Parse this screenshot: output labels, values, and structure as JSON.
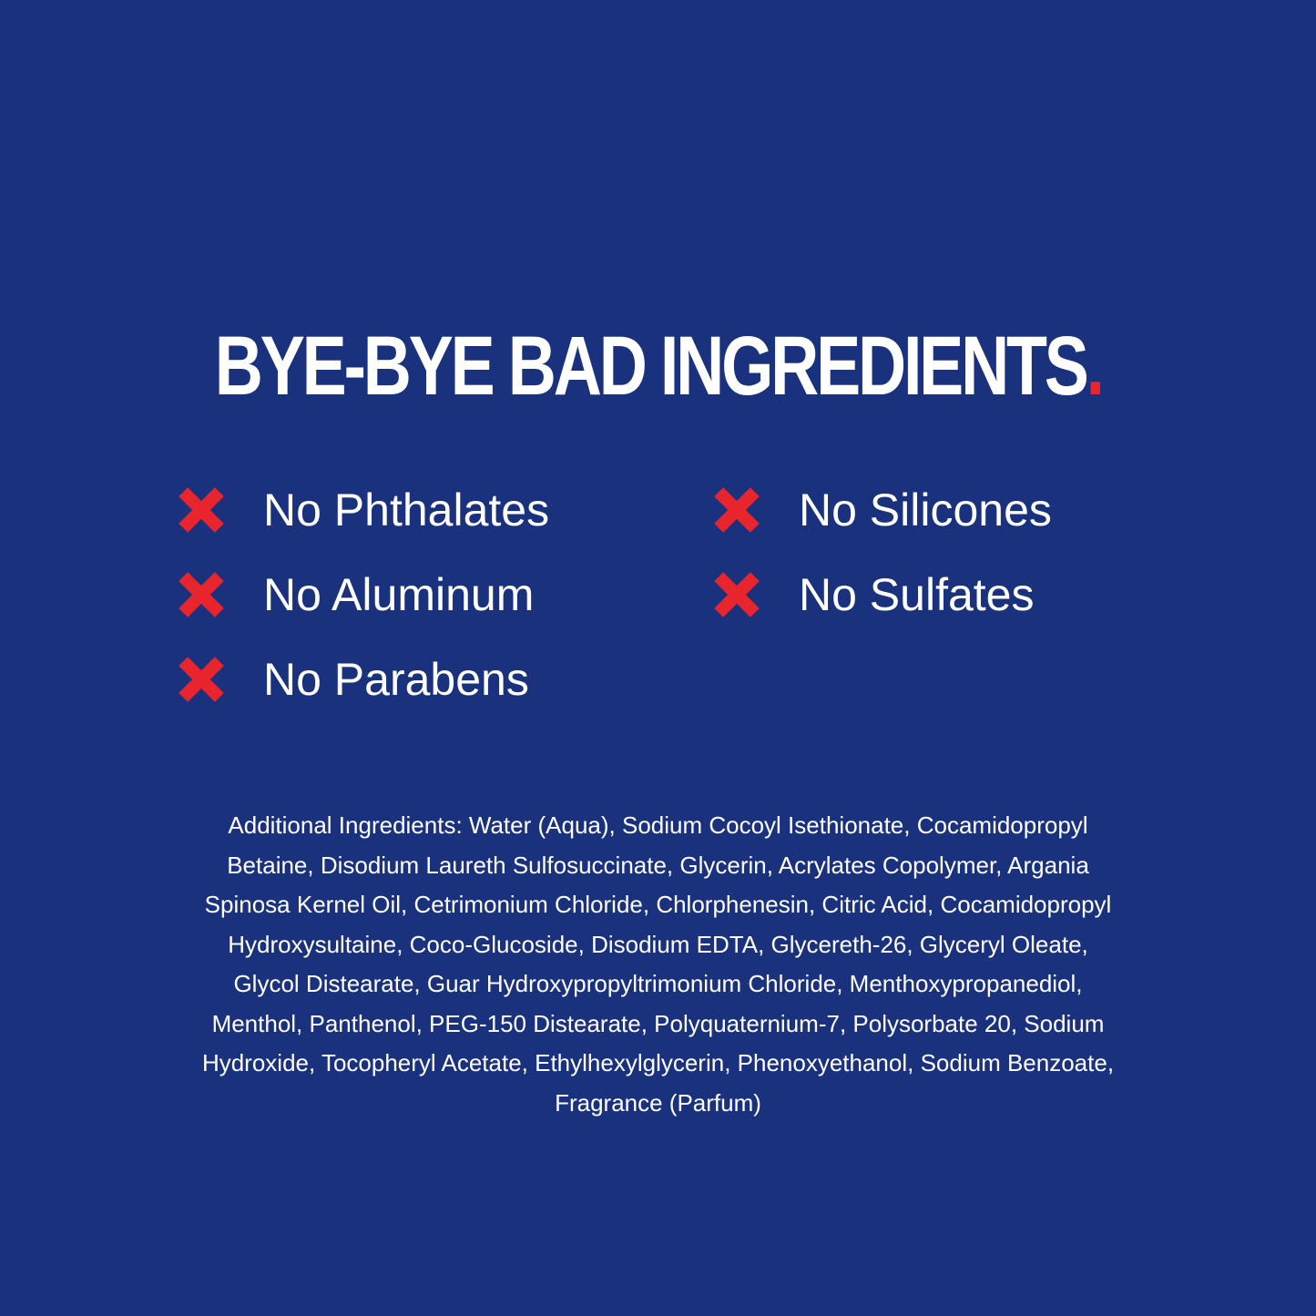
{
  "headline": {
    "text": "BYE-BYE BAD INGREDIENTS",
    "period": "."
  },
  "colors": {
    "background": "#1a327d",
    "accent": "#e8252d",
    "text": "#ffffff"
  },
  "free_from": [
    {
      "label": "No Phthalates",
      "icon": "x-icon"
    },
    {
      "label": "No Aluminum",
      "icon": "x-icon"
    },
    {
      "label": "No Parabens",
      "icon": "x-icon"
    },
    {
      "label": "No Silicones",
      "icon": "x-icon"
    },
    {
      "label": "No Sulfates",
      "icon": "x-icon"
    }
  ],
  "ingredients_lines": [
    "Additional Ingredients: Water (Aqua), Sodium Cocoyl Isethionate, Cocamidopropyl",
    "Betaine, Disodium Laureth Sulfosuccinate, Glycerin, Acrylates Copolymer, Argania",
    "Spinosa Kernel Oil, Cetrimonium Chloride, Chlorphenesin, Citric Acid, Cocamidopropyl",
    "Hydroxysultaine, Coco-Glucoside, Disodium EDTA, Glycereth-26, Glyceryl Oleate,",
    "Glycol Distearate, Guar Hydroxypropyltrimonium Chloride, Menthoxypropanediol,",
    "Menthol, Panthenol, PEG-150 Distearate, Polyquaternium-7, Polysorbate 20, Sodium",
    "Hydroxide, Tocopheryl Acetate, Ethylhexylglycerin, Phenoxyethanol, Sodium Benzoate,",
    "Fragrance (Parfum)"
  ]
}
